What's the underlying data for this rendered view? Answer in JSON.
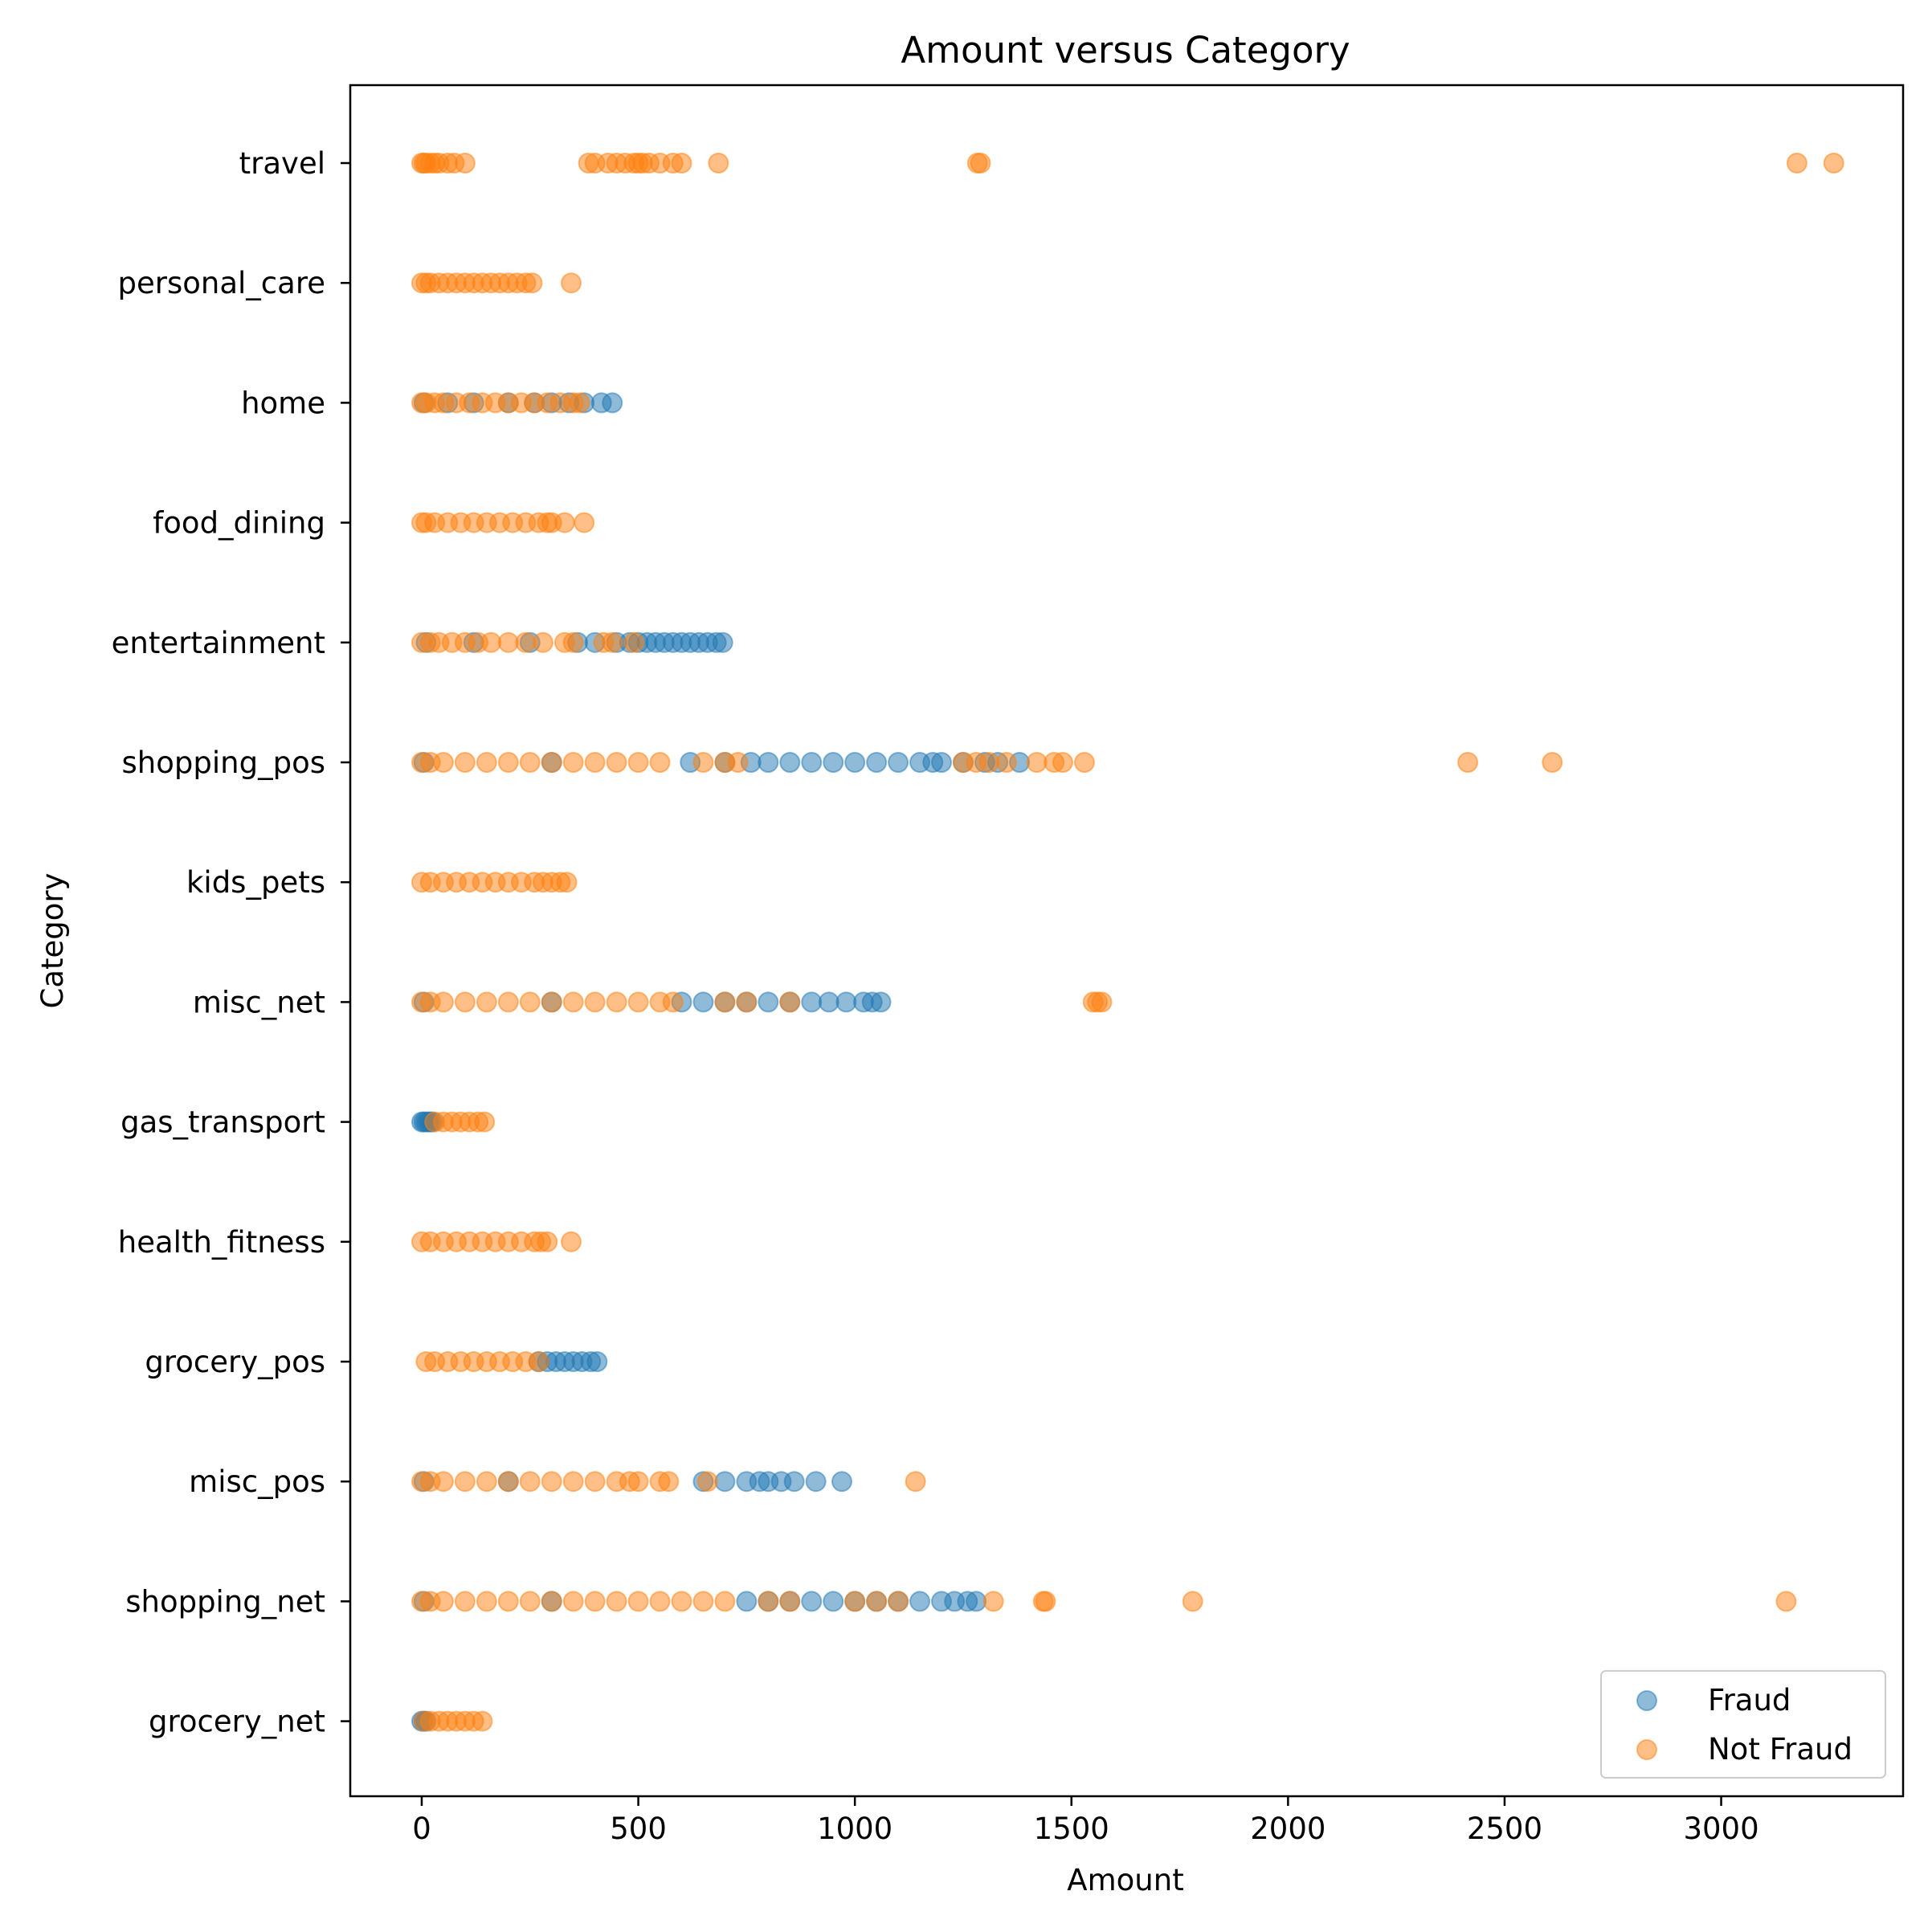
{
  "chart_data": {
    "type": "scatter",
    "title": "Amount versus Category",
    "xlabel": "Amount",
    "ylabel": "Category",
    "xlim": [
      -165,
      3420
    ],
    "x_ticks": [
      0,
      500,
      1000,
      1500,
      2000,
      2500,
      3000
    ],
    "x_tick_labels": [
      "0",
      "500",
      "1000",
      "1500",
      "2000",
      "2500",
      "3000"
    ],
    "categories": [
      "travel",
      "personal_care",
      "home",
      "food_dining",
      "entertainment",
      "shopping_pos",
      "kids_pets",
      "misc_net",
      "gas_transport",
      "health_fitness",
      "grocery_pos",
      "misc_pos",
      "shopping_net",
      "grocery_net"
    ],
    "grid": false,
    "legend": {
      "placement": "lower-right",
      "entries": [
        "Fraud",
        "Not Fraud"
      ]
    },
    "series": [
      {
        "name": "Fraud",
        "color": "#1f77b4",
        "points": {
          "home": [
            5,
            60,
            120,
            200,
            260,
            300,
            340,
            375,
            415,
            440
          ],
          "entertainment": [
            10,
            120,
            250,
            360,
            400,
            450,
            480,
            500,
            520,
            540,
            560,
            580,
            600,
            620,
            640,
            660,
            680,
            695
          ],
          "shopping_pos": [
            5,
            300,
            620,
            700,
            760,
            800,
            850,
            900,
            950,
            1000,
            1050,
            1100,
            1150,
            1180,
            1200,
            1250,
            1300,
            1330,
            1380
          ],
          "misc_net": [
            5,
            300,
            600,
            650,
            700,
            750,
            800,
            850,
            900,
            940,
            980,
            1020,
            1040,
            1060
          ],
          "gas_transport": [
            0,
            5,
            10,
            15,
            20,
            25
          ],
          "grocery_pos": [
            270,
            290,
            310,
            330,
            350,
            370,
            390,
            405
          ],
          "misc_pos": [
            5,
            200,
            650,
            700,
            750,
            780,
            800,
            830,
            860,
            910,
            970
          ],
          "shopping_net": [
            5,
            300,
            750,
            800,
            850,
            900,
            950,
            1000,
            1050,
            1100,
            1150,
            1200,
            1230,
            1260,
            1280
          ],
          "grocery_net": [
            0,
            5,
            10
          ]
        }
      },
      {
        "name": "Not Fraud",
        "color": "#ff7f0e",
        "points": {
          "travel": [
            0,
            5,
            10,
            20,
            30,
            40,
            60,
            75,
            100,
            385,
            400,
            430,
            450,
            470,
            490,
            500,
            510,
            525,
            550,
            580,
            600,
            685,
            1283,
            1290,
            3175,
            3260
          ],
          "personal_care": [
            0,
            10,
            20,
            40,
            60,
            80,
            100,
            120,
            140,
            160,
            180,
            200,
            220,
            240,
            255,
            345
          ],
          "home": [
            0,
            10,
            30,
            50,
            80,
            110,
            140,
            170,
            200,
            230,
            260,
            290,
            320,
            350,
            365
          ],
          "food_dining": [
            0,
            10,
            30,
            60,
            90,
            120,
            150,
            180,
            210,
            240,
            270,
            290,
            300,
            330,
            375
          ],
          "entertainment": [
            0,
            20,
            40,
            70,
            100,
            130,
            160,
            200,
            240,
            280,
            330,
            350,
            420,
            440,
            490
          ],
          "shopping_pos": [
            0,
            20,
            50,
            100,
            150,
            200,
            250,
            300,
            350,
            400,
            450,
            500,
            550,
            650,
            700,
            730,
            1250,
            1280,
            1310,
            1350,
            1420,
            1460,
            1480,
            1530,
            2415,
            2610
          ],
          "kids_pets": [
            0,
            20,
            50,
            80,
            110,
            140,
            170,
            200,
            230,
            260,
            280,
            300,
            320,
            335
          ],
          "misc_net": [
            0,
            20,
            50,
            100,
            150,
            200,
            250,
            300,
            350,
            400,
            450,
            500,
            550,
            580,
            700,
            750,
            850,
            1550,
            1560,
            1570
          ],
          "gas_transport": [
            30,
            50,
            70,
            90,
            110,
            130,
            145
          ],
          "health_fitness": [
            0,
            20,
            50,
            80,
            110,
            140,
            170,
            200,
            230,
            260,
            275,
            290,
            345
          ],
          "grocery_pos": [
            10,
            30,
            60,
            90,
            120,
            150,
            180,
            210,
            240,
            270
          ],
          "misc_pos": [
            0,
            20,
            50,
            100,
            150,
            200,
            250,
            300,
            350,
            400,
            450,
            480,
            500,
            550,
            570,
            660,
            1140
          ],
          "shopping_net": [
            0,
            20,
            50,
            100,
            150,
            200,
            250,
            300,
            350,
            400,
            450,
            500,
            550,
            600,
            650,
            700,
            800,
            850,
            1000,
            1050,
            1100,
            1320,
            1435,
            1440,
            1780,
            3150
          ],
          "grocery_net": [
            5,
            20,
            40,
            60,
            80,
            100,
            120,
            140
          ]
        }
      }
    ]
  }
}
